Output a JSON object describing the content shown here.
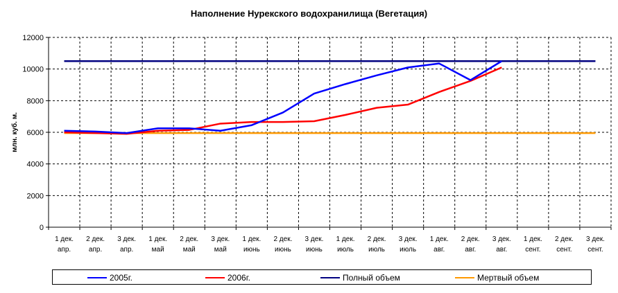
{
  "chart_data": {
    "type": "line",
    "title": "Наполнение Нурекского водохранилища (Вегетация)",
    "ylabel": "млн. куб. м.",
    "xlabel": "",
    "ylim": [
      0,
      12000
    ],
    "yticks": [
      0,
      2000,
      4000,
      6000,
      8000,
      10000,
      12000
    ],
    "y_tick_labels": [
      "0",
      "2000",
      "4000",
      "6000",
      "8000",
      "10000",
      "12000"
    ],
    "grid": true,
    "legend_position": "bottom",
    "categories": [
      [
        "1 дек.",
        "апр."
      ],
      [
        "2 дек.",
        "апр."
      ],
      [
        "3 дек.",
        "апр."
      ],
      [
        "1 дек.",
        "май"
      ],
      [
        "2 дек.",
        "май"
      ],
      [
        "3 дек.",
        "май"
      ],
      [
        "1 дек.",
        "июнь"
      ],
      [
        "2 дек.",
        "июнь"
      ],
      [
        "3 дек.",
        "июнь"
      ],
      [
        "1 дек.",
        "июль"
      ],
      [
        "2 дек.",
        "июль"
      ],
      [
        "3 дек.",
        "июль"
      ],
      [
        "1 дек.",
        "авг."
      ],
      [
        "2 дек.",
        "авг."
      ],
      [
        "3 дек.",
        "авг."
      ],
      [
        "1 дек.",
        "сент."
      ],
      [
        "2 дек.",
        "сент."
      ],
      [
        "3 дек.",
        "сент."
      ]
    ],
    "series": [
      {
        "name": "2005г.",
        "color": "#0000ff",
        "values": [
          6100,
          6050,
          5950,
          6250,
          6250,
          6100,
          6450,
          7250,
          8450,
          9050,
          9600,
          10100,
          10350,
          9300,
          10500,
          null,
          null,
          null
        ]
      },
      {
        "name": "2006г.",
        "color": "#ff0000",
        "values": [
          6000,
          5950,
          5900,
          6100,
          6150,
          6550,
          6650,
          6650,
          6700,
          7100,
          7550,
          7750,
          8550,
          9250,
          10100,
          null,
          null,
          null
        ]
      },
      {
        "name": "Полный объем",
        "color": "#000080",
        "values": [
          10500,
          10500,
          10500,
          10500,
          10500,
          10500,
          10500,
          10500,
          10500,
          10500,
          10500,
          10500,
          10500,
          10500,
          10500,
          10500,
          10500,
          10500
        ]
      },
      {
        "name": "Мертвый объем",
        "color": "#ff9900",
        "values": [
          5950,
          5950,
          5950,
          5950,
          5950,
          5950,
          5950,
          5950,
          5950,
          5950,
          5950,
          5950,
          5950,
          5950,
          5950,
          5950,
          5950,
          5950
        ]
      }
    ]
  }
}
